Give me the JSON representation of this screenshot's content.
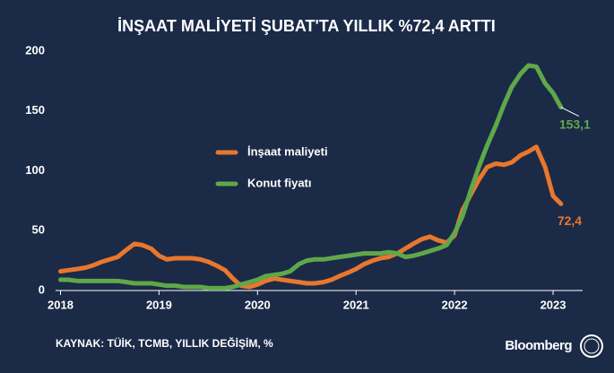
{
  "chart_data": {
    "type": "line",
    "title": "İNŞAAT MALİYETİ ŞUBAT'TA YILLIK %72,4 ARTTI",
    "source": "KAYNAK: TÜİK, TCMB, YILLIK DEĞİŞİM, %",
    "brand": "Bloomberg",
    "x": [
      2018,
      2018.08,
      2018.17,
      2018.25,
      2018.33,
      2018.42,
      2018.5,
      2018.58,
      2018.67,
      2018.75,
      2018.83,
      2018.92,
      2019,
      2019.08,
      2019.17,
      2019.25,
      2019.33,
      2019.42,
      2019.5,
      2019.58,
      2019.67,
      2019.75,
      2019.83,
      2019.92,
      2020,
      2020.08,
      2020.17,
      2020.25,
      2020.33,
      2020.42,
      2020.5,
      2020.58,
      2020.67,
      2020.75,
      2020.83,
      2020.92,
      2021,
      2021.08,
      2021.17,
      2021.25,
      2021.33,
      2021.42,
      2021.5,
      2021.58,
      2021.67,
      2021.75,
      2021.83,
      2021.92,
      2022,
      2022.08,
      2022.17,
      2022.25,
      2022.33,
      2022.42,
      2022.5,
      2022.58,
      2022.67,
      2022.75,
      2022.83,
      2022.92,
      2023,
      2023.08
    ],
    "series": [
      {
        "name": "İnşaat maliyeti",
        "color": "#e8772e",
        "values": [
          16,
          17,
          18,
          19,
          21,
          24,
          26,
          28,
          34,
          39,
          38,
          35,
          29,
          26,
          27,
          27,
          27,
          26,
          24,
          21,
          17,
          10,
          4,
          3,
          5,
          8,
          10,
          9,
          8,
          7,
          6,
          6,
          7,
          9,
          12,
          15,
          18,
          22,
          25,
          27,
          28,
          31,
          35,
          39,
          43,
          45,
          42,
          40,
          46,
          67,
          81,
          93,
          103,
          106,
          105,
          107,
          113,
          116,
          120,
          103,
          79,
          72.4
        ],
        "value_labels": [
          null,
          null,
          null,
          null,
          null,
          null,
          null,
          null,
          null,
          null,
          null,
          null,
          null,
          null,
          null,
          null,
          null,
          null,
          null,
          null,
          null,
          null,
          null,
          null,
          null,
          null,
          null,
          null,
          null,
          null,
          null,
          null,
          null,
          null,
          null,
          null,
          null,
          null,
          null,
          null,
          null,
          null,
          null,
          null,
          null,
          null,
          null,
          null,
          null,
          null,
          null,
          null,
          null,
          null,
          null,
          null,
          null,
          null,
          null,
          null,
          null,
          "72,4"
        ]
      },
      {
        "name": "Konut fiyatı",
        "color": "#5fa84a",
        "values": [
          9,
          9,
          8,
          8,
          8,
          8,
          8,
          8,
          7,
          6,
          6,
          6,
          5,
          4,
          4,
          3,
          3,
          3,
          2,
          2,
          2,
          3,
          5,
          7,
          9,
          12,
          13,
          14,
          16,
          22,
          25,
          26,
          26,
          27,
          28,
          29,
          30,
          31,
          31,
          31,
          32,
          31,
          28,
          29,
          31,
          33,
          35,
          38,
          48,
          62,
          85,
          104,
          121,
          138,
          155,
          170,
          181,
          188,
          187,
          173,
          165,
          153.1
        ],
        "value_labels": [
          null,
          null,
          null,
          null,
          null,
          null,
          null,
          null,
          null,
          null,
          null,
          null,
          null,
          null,
          null,
          null,
          null,
          null,
          null,
          null,
          null,
          null,
          null,
          null,
          null,
          null,
          null,
          null,
          null,
          null,
          null,
          null,
          null,
          null,
          null,
          null,
          null,
          null,
          null,
          null,
          null,
          null,
          null,
          null,
          null,
          null,
          null,
          null,
          null,
          null,
          null,
          null,
          null,
          null,
          null,
          null,
          null,
          null,
          null,
          null,
          null,
          "153,1"
        ]
      }
    ],
    "xlim": [
      2017.95,
      2023.3
    ],
    "xticks": [
      2018,
      2019,
      2020,
      2021,
      2022,
      2023
    ],
    "ylim": [
      0,
      200
    ],
    "yticks": [
      0,
      50,
      100,
      150,
      200
    ],
    "grid": false
  }
}
